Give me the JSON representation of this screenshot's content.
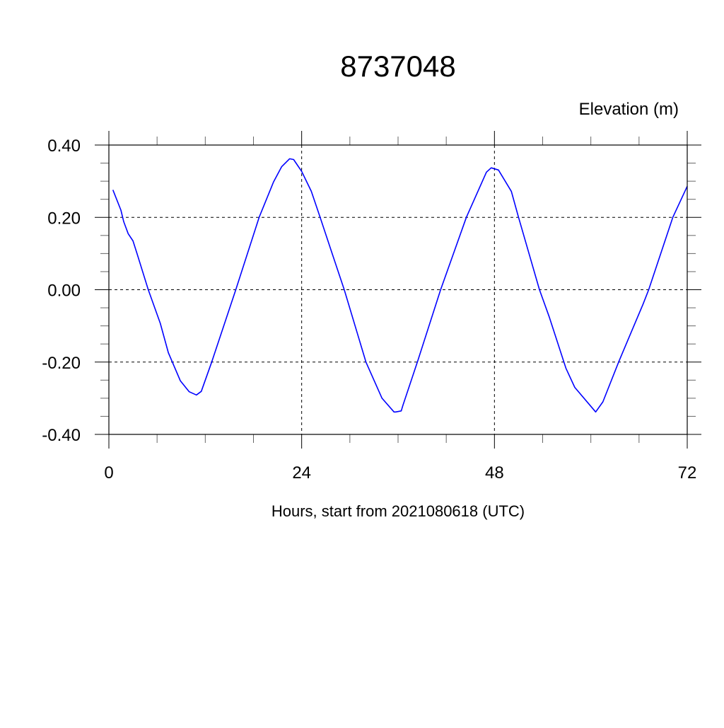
{
  "chart_data": {
    "type": "line",
    "title": "8737048",
    "ylabel": "Elevation (m)",
    "xlabel": "Hours, start from 2021080618 (UTC)",
    "xlim": [
      0,
      72
    ],
    "ylim": [
      -0.4,
      0.4
    ],
    "x_ticks": [
      0,
      24,
      48,
      72
    ],
    "x_tick_labels": [
      "0",
      "24",
      "48",
      "72"
    ],
    "x_minor_step": 6,
    "y_ticks": [
      -0.4,
      -0.2,
      0.0,
      0.2,
      0.4
    ],
    "y_tick_labels": [
      "-0.40",
      "-0.20",
      "0.00",
      "0.20",
      "0.40"
    ],
    "y_minor_step": 0.05,
    "grid": true,
    "series": [
      {
        "color": "#0000ff",
        "x": [
          0.5,
          1.5,
          1.85,
          2.4,
          3.0,
          3.5,
          4.9,
          6.4,
          7.4,
          8.9,
          10.0,
          10.9,
          11.5,
          12.8,
          15.8,
          18.7,
          20.5,
          21.5,
          22.5,
          23.0,
          24.0,
          25.2,
          26.3,
          27.8,
          29.3,
          32.0,
          34.0,
          35.5,
          35.7,
          36.4,
          36.6,
          38.4,
          41.3,
          44.5,
          47.0,
          47.6,
          48.5,
          50.1,
          51.0,
          53.6,
          54.8,
          56.9,
          58.0,
          60.6,
          61.5,
          63.5,
          66.5,
          67.2,
          70.2,
          72.0
        ],
        "y": [
          0.276,
          0.22,
          0.188,
          0.155,
          0.135,
          0.1,
          0.0,
          -0.093,
          -0.174,
          -0.252,
          -0.282,
          -0.291,
          -0.281,
          -0.2,
          0.0,
          0.2,
          0.298,
          0.34,
          0.362,
          0.36,
          0.327,
          0.272,
          0.2,
          0.1,
          0.0,
          -0.2,
          -0.3,
          -0.338,
          -0.338,
          -0.335,
          -0.32,
          -0.2,
          0.0,
          0.2,
          0.325,
          0.337,
          0.331,
          0.272,
          0.2,
          0.0,
          -0.074,
          -0.217,
          -0.27,
          -0.338,
          -0.31,
          -0.198,
          -0.04,
          0.0,
          0.2,
          0.286
        ]
      }
    ]
  }
}
